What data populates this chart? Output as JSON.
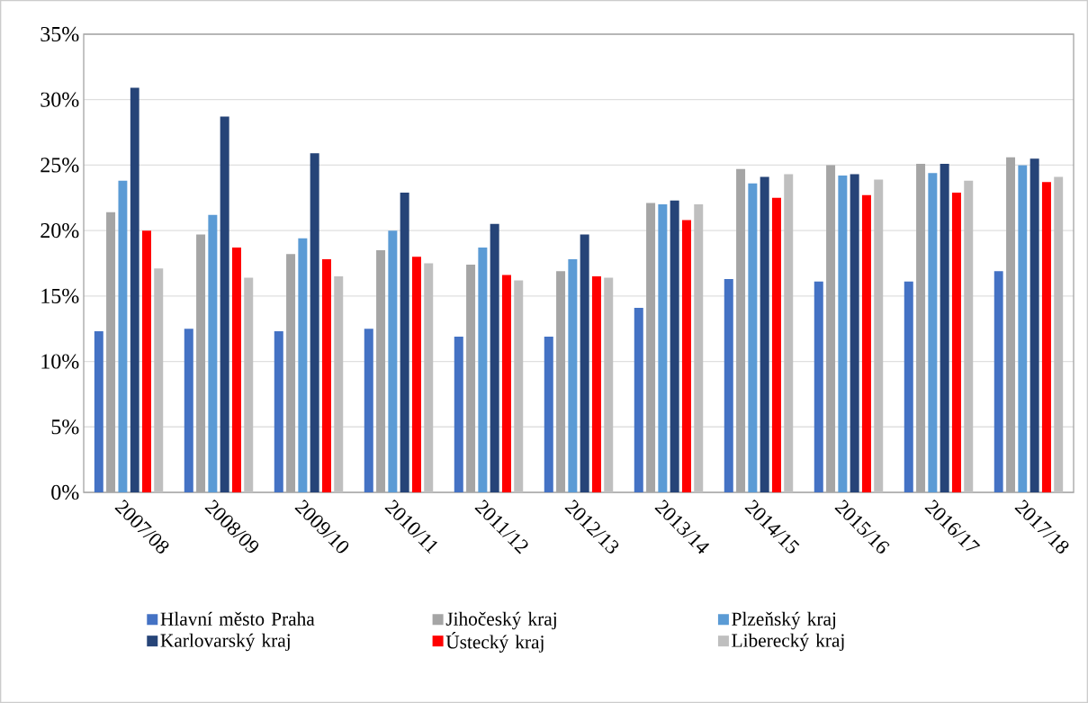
{
  "chart_data": {
    "type": "bar",
    "categories": [
      "2007/08",
      "2008/09",
      "2009/10",
      "2010/11",
      "2011/12",
      "2012/13",
      "2013/14",
      "2014/15",
      "2015/16",
      "2016/17",
      "2017/18"
    ],
    "series": [
      {
        "name": "Hlavní město Praha",
        "color": "#4472c4",
        "values": [
          12.3,
          12.5,
          12.3,
          12.5,
          11.9,
          11.9,
          14.1,
          16.3,
          16.1,
          16.1,
          16.9
        ]
      },
      {
        "name": "Jihočeský kraj",
        "color": "#a5a5a5",
        "values": [
          21.4,
          19.7,
          18.2,
          18.5,
          17.4,
          16.9,
          22.1,
          24.7,
          25.0,
          25.1,
          25.6
        ]
      },
      {
        "name": "Plzeňský kraj",
        "color": "#5b9bd5",
        "values": [
          23.8,
          21.2,
          19.4,
          20.0,
          18.7,
          17.8,
          22.0,
          23.6,
          24.2,
          24.4,
          25.0
        ]
      },
      {
        "name": "Karlovarský kraj",
        "color": "#264478",
        "values": [
          30.9,
          28.7,
          25.9,
          22.9,
          20.5,
          19.7,
          22.3,
          24.1,
          24.3,
          25.1,
          25.5
        ]
      },
      {
        "name": "Ústecký kraj",
        "color": "#ff0000",
        "values": [
          20.0,
          18.7,
          17.8,
          18.0,
          16.6,
          16.5,
          20.8,
          22.5,
          22.7,
          22.9,
          23.7
        ]
      },
      {
        "name": "Liberecký kraj",
        "color": "#bfbfbf",
        "values": [
          17.1,
          16.4,
          16.5,
          17.5,
          16.2,
          16.4,
          22.0,
          24.3,
          23.9,
          23.8,
          24.1
        ]
      }
    ],
    "ylim": [
      0,
      35
    ],
    "yticks": [
      {
        "value": 0,
        "label": "0%"
      },
      {
        "value": 5,
        "label": "5%"
      },
      {
        "value": 10,
        "label": "10%"
      },
      {
        "value": 15,
        "label": "15%"
      },
      {
        "value": 20,
        "label": "20%"
      },
      {
        "value": 25,
        "label": "25%"
      },
      {
        "value": 30,
        "label": "30%"
      },
      {
        "value": 35,
        "label": "35%"
      }
    ],
    "grid": "y",
    "legend": "bottom"
  }
}
